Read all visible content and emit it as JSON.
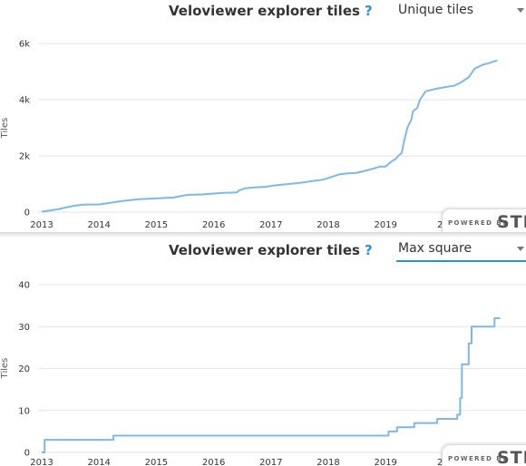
{
  "charts": [
    {
      "title": "Veloviewer explorer tiles",
      "help": "?",
      "select": {
        "value": "Unique tiles"
      },
      "ylabel": "Tiles",
      "yticks": [
        "0",
        "2k",
        "4k",
        "6k"
      ],
      "xticks": [
        "2013",
        "2014",
        "2015",
        "2016",
        "2017",
        "2018",
        "2019",
        "20"
      ],
      "powered_by": {
        "small": "POWERED BY",
        "brand": "STR"
      }
    },
    {
      "title": "Veloviewer explorer tiles",
      "help": "?",
      "select": {
        "value": "Max square"
      },
      "ylabel": "Tiles",
      "yticks": [
        "0",
        "10",
        "20",
        "30",
        "40"
      ],
      "xticks": [
        "2013",
        "2014",
        "2015",
        "2016",
        "2017",
        "2018",
        "2019",
        "20"
      ],
      "powered_by": {
        "small": "POWERED BY",
        "brand": "STR"
      }
    }
  ],
  "chart_data": [
    {
      "type": "line",
      "title": "Veloviewer explorer tiles",
      "ylabel": "Tiles",
      "xlim": [
        2013.0,
        2021.0
      ],
      "ylim": [
        0,
        6000
      ],
      "grid": true,
      "color": "#7fb8e6",
      "series": [
        {
          "x": [
            2013.0,
            2013.15,
            2013.3,
            2013.45,
            2013.6,
            2013.75,
            2013.8,
            2014.0,
            2014.2,
            2014.35,
            2014.5,
            2014.7,
            2014.9,
            2015.1,
            2015.3,
            2015.5,
            2015.6,
            2015.8,
            2016.0,
            2016.2,
            2016.4,
            2016.45,
            2016.55,
            2016.7,
            2016.9,
            2017.05,
            2017.3,
            2017.55,
            2017.7,
            2017.9,
            2018.05,
            2018.2,
            2018.35,
            2018.5,
            2018.7,
            2018.9,
            2019.0,
            2019.1,
            2019.18,
            2019.22,
            2019.28,
            2019.32,
            2019.38,
            2019.45,
            2019.48,
            2019.55,
            2019.6,
            2019.7,
            2019.9,
            2020.05,
            2020.2,
            2020.3,
            2020.45,
            2020.55,
            2020.7,
            2020.8,
            2020.95
          ],
          "y": [
            20,
            60,
            110,
            180,
            240,
            270,
            270,
            275,
            330,
            380,
            420,
            460,
            480,
            500,
            520,
            600,
            620,
            630,
            660,
            690,
            700,
            780,
            850,
            880,
            900,
            950,
            1000,
            1050,
            1100,
            1150,
            1250,
            1350,
            1380,
            1400,
            1500,
            1620,
            1620,
            1800,
            1900,
            2000,
            2100,
            2500,
            3000,
            3300,
            3600,
            3700,
            4000,
            4300,
            4400,
            4450,
            4500,
            4600,
            4800,
            5100,
            5250,
            5300,
            5400
          ]
        }
      ]
    },
    {
      "type": "line",
      "title": "Veloviewer explorer tiles",
      "ylabel": "Tiles",
      "xlim": [
        2013.0,
        2021.0
      ],
      "ylim": [
        0,
        40
      ],
      "grid": true,
      "color": "#7fb8e6",
      "series": [
        {
          "x": [
            2013.0,
            2013.05,
            2013.05,
            2014.25,
            2014.25,
            2019.05,
            2019.05,
            2019.2,
            2019.2,
            2019.5,
            2019.5,
            2019.9,
            2019.9,
            2020.25,
            2020.25,
            2020.3,
            2020.3,
            2020.33,
            2020.33,
            2020.45,
            2020.45,
            2020.5,
            2020.5,
            2020.6,
            2020.6,
            2020.9,
            2020.9,
            2021.0
          ],
          "y": [
            0,
            0,
            3,
            3,
            4,
            4,
            5,
            5,
            6,
            6,
            7,
            7,
            8,
            8,
            9,
            9,
            13,
            13,
            21,
            21,
            26,
            26,
            30,
            30,
            30,
            30,
            32,
            32
          ]
        }
      ]
    }
  ]
}
